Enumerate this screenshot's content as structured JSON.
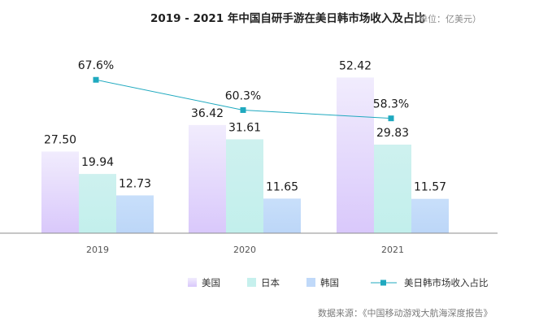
{
  "chart_data": {
    "type": "bar",
    "title": "2019 - 2021 年中国自研手游在美日韩市场收入及占比",
    "unit_note": "（单位：亿美元）",
    "categories": [
      "2019",
      "2020",
      "2021"
    ],
    "series": [
      {
        "name": "美国",
        "values": [
          27.5,
          36.42,
          52.42
        ],
        "labels": [
          "27.50",
          "36.42",
          "52.42"
        ],
        "color_top": "#f1ecfd",
        "color_bottom": "#d9c8fb"
      },
      {
        "name": "日本",
        "values": [
          19.94,
          31.61,
          29.83
        ],
        "labels": [
          "19.94",
          "31.61",
          "29.83"
        ],
        "color_top": "#cef1ef",
        "color_bottom": "#c2efec"
      },
      {
        "name": "韩国",
        "values": [
          12.73,
          11.65,
          11.57
        ],
        "labels": [
          "12.73",
          "11.65",
          "11.57"
        ],
        "color_top": "#c8dffa",
        "color_bottom": "#bcd6f8"
      }
    ],
    "line_series": {
      "name": "美日韩市场收入占比",
      "values": [
        67.6,
        60.3,
        58.3
      ],
      "labels": [
        "67.6%",
        "60.3%",
        "58.3%"
      ],
      "color": "#1fa9bf"
    },
    "ylim": [
      0,
      58
    ],
    "xlabel": "",
    "ylabel": "",
    "legend_position": "bottom-right",
    "source": "数据来源：《中国移动游戏大航海深度报告》"
  }
}
